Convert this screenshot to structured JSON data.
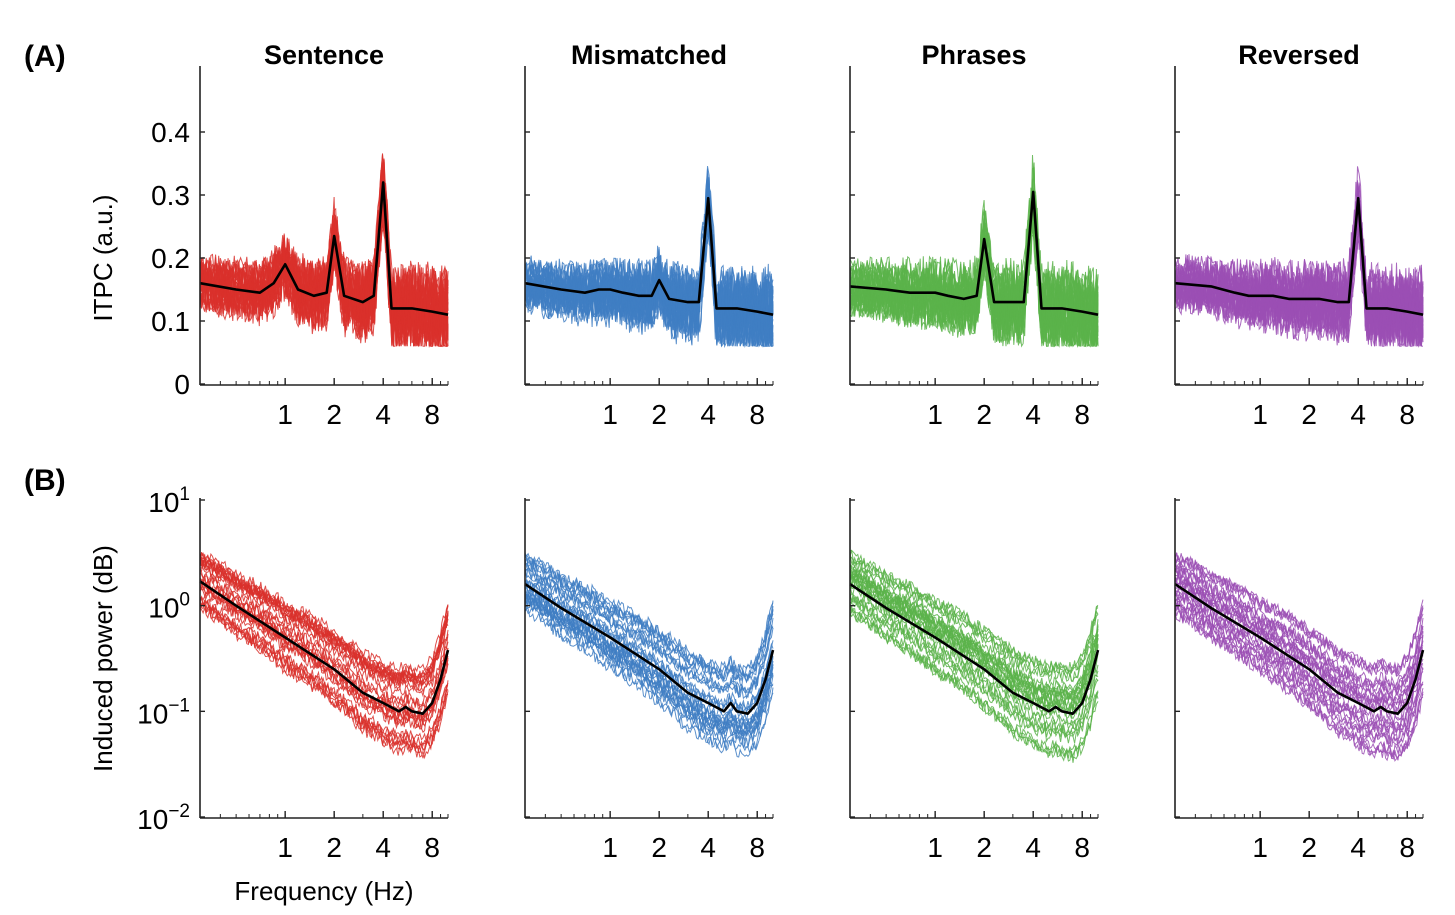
{
  "panels": [
    {
      "letter": "(A)"
    },
    {
      "letter": "(B)"
    }
  ],
  "chart_data": [
    {
      "type": "line",
      "row": "A",
      "ylabel": "ITPC (a.u.)",
      "ylim": [
        0,
        0.45
      ],
      "yticks": [
        0,
        0.1,
        0.2,
        0.3,
        0.4
      ],
      "ytick_labels": [
        "0",
        "0.1",
        "0.2",
        "0.3",
        "0.4"
      ],
      "xscale": "log",
      "xlim": [
        0.3,
        10
      ],
      "xticks": [
        1,
        2,
        4,
        8
      ],
      "xtick_labels": [
        "1",
        "2",
        "4",
        "8"
      ],
      "individual_lines": "approx. 30 per condition, thin colored lines",
      "conditions": [
        {
          "title": "Sentence",
          "color": "#d9302b",
          "mean": {
            "x": [
              0.3,
              0.5,
              0.7,
              0.85,
              1.0,
              1.2,
              1.5,
              1.8,
              2.0,
              2.3,
              3.0,
              3.5,
              4.0,
              4.5,
              6.0,
              8.0,
              10.0
            ],
            "y": [
              0.16,
              0.15,
              0.145,
              0.16,
              0.19,
              0.15,
              0.14,
              0.145,
              0.235,
              0.14,
              0.13,
              0.14,
              0.32,
              0.12,
              0.12,
              0.115,
              0.11
            ]
          }
        },
        {
          "title": "Mismatched",
          "color": "#3f7ec3",
          "mean": {
            "x": [
              0.3,
              0.5,
              0.7,
              0.85,
              1.0,
              1.2,
              1.5,
              1.8,
              2.0,
              2.3,
              3.0,
              3.5,
              4.0,
              4.5,
              6.0,
              8.0,
              10.0
            ],
            "y": [
              0.16,
              0.15,
              0.145,
              0.15,
              0.15,
              0.145,
              0.14,
              0.14,
              0.165,
              0.135,
              0.13,
              0.13,
              0.295,
              0.12,
              0.12,
              0.115,
              0.11
            ]
          }
        },
        {
          "title": "Phrases",
          "color": "#5bb34a",
          "mean": {
            "x": [
              0.3,
              0.5,
              0.7,
              0.85,
              1.0,
              1.2,
              1.5,
              1.8,
              2.0,
              2.3,
              3.0,
              3.5,
              4.0,
              4.5,
              6.0,
              8.0,
              10.0
            ],
            "y": [
              0.155,
              0.15,
              0.145,
              0.145,
              0.145,
              0.14,
              0.135,
              0.14,
              0.23,
              0.13,
              0.13,
              0.13,
              0.305,
              0.12,
              0.12,
              0.115,
              0.11
            ]
          }
        },
        {
          "title": "Reversed",
          "color": "#9b4fb4",
          "mean": {
            "x": [
              0.3,
              0.5,
              0.7,
              0.85,
              1.0,
              1.2,
              1.5,
              1.8,
              2.0,
              2.3,
              3.0,
              3.5,
              4.0,
              4.5,
              6.0,
              8.0,
              10.0
            ],
            "y": [
              0.16,
              0.155,
              0.145,
              0.14,
              0.14,
              0.14,
              0.135,
              0.135,
              0.135,
              0.135,
              0.13,
              0.13,
              0.295,
              0.12,
              0.12,
              0.115,
              0.11
            ]
          }
        }
      ]
    },
    {
      "type": "line",
      "row": "B",
      "ylabel": "Induced power (dB)",
      "xlabel": "Frequency (Hz)",
      "yscale": "log",
      "ylim": [
        0.01,
        10
      ],
      "yticks": [
        0.01,
        0.1,
        1,
        10
      ],
      "ytick_labels": [
        {
          "base": "10",
          "exp": "−2"
        },
        {
          "base": "10",
          "exp": "−1"
        },
        {
          "base": "10",
          "exp": "0"
        },
        {
          "base": "10",
          "exp": "1"
        }
      ],
      "xscale": "log",
      "xlim": [
        0.3,
        10
      ],
      "xticks": [
        1,
        2,
        4,
        8
      ],
      "xtick_labels": [
        "1",
        "2",
        "4",
        "8"
      ],
      "individual_lines": "approx. 30 per condition, thin colored lines",
      "conditions": [
        {
          "title": "Sentence",
          "color": "#d9302b",
          "mean": {
            "x": [
              0.3,
              0.5,
              1.0,
              2.0,
              3.0,
              4.0,
              5.0,
              5.5,
              6.0,
              7.0,
              8.0,
              9.0,
              10.0
            ],
            "y": [
              1.7,
              1.0,
              0.5,
              0.25,
              0.15,
              0.12,
              0.1,
              0.11,
              0.1,
              0.095,
              0.12,
              0.2,
              0.38
            ]
          }
        },
        {
          "title": "Mismatched",
          "color": "#3f7ec3",
          "mean": {
            "x": [
              0.3,
              0.5,
              1.0,
              2.0,
              3.0,
              4.0,
              5.0,
              5.5,
              6.0,
              7.0,
              8.0,
              9.0,
              10.0
            ],
            "y": [
              1.6,
              0.95,
              0.5,
              0.25,
              0.15,
              0.12,
              0.1,
              0.12,
              0.1,
              0.095,
              0.12,
              0.2,
              0.38
            ]
          }
        },
        {
          "title": "Phrases",
          "color": "#5bb34a",
          "mean": {
            "x": [
              0.3,
              0.5,
              1.0,
              2.0,
              3.0,
              4.0,
              5.0,
              5.5,
              6.0,
              7.0,
              8.0,
              9.0,
              10.0
            ],
            "y": [
              1.6,
              0.95,
              0.5,
              0.25,
              0.15,
              0.12,
              0.1,
              0.11,
              0.1,
              0.095,
              0.12,
              0.2,
              0.38
            ]
          }
        },
        {
          "title": "Reversed",
          "color": "#9b4fb4",
          "mean": {
            "x": [
              0.3,
              0.5,
              1.0,
              2.0,
              3.0,
              4.0,
              5.0,
              5.5,
              6.0,
              7.0,
              8.0,
              9.0,
              10.0
            ],
            "y": [
              1.6,
              0.95,
              0.5,
              0.25,
              0.15,
              0.12,
              0.1,
              0.11,
              0.1,
              0.095,
              0.12,
              0.2,
              0.38
            ]
          }
        }
      ]
    }
  ]
}
